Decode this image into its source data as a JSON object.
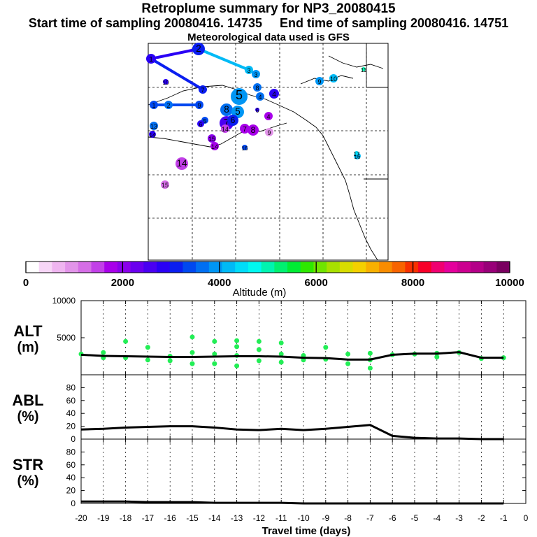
{
  "header": {
    "title": "Retroplume summary for NP3_20080415",
    "start_label": "Start time of sampling 20080416. 14735",
    "end_label": "End time of sampling 20080416. 14751",
    "met_label": "Meteorological data used is GFS"
  },
  "colorbar": {
    "label": "Altitude (m)",
    "ticks": [
      "0",
      "2000",
      "4000",
      "6000",
      "8000",
      "10000"
    ],
    "range": [
      0,
      10000
    ],
    "colors": [
      "#ffffff",
      "#f7d6f7",
      "#efb5f0",
      "#e294e9",
      "#d56ee6",
      "#c240e8",
      "#a800ea",
      "#8a00ec",
      "#6a00ef",
      "#4a00f2",
      "#2a00f5",
      "#0a1ef0",
      "#0048f0",
      "#006ff2",
      "#0096f4",
      "#00baf6",
      "#00dcf8",
      "#00f8f0",
      "#00f4b0",
      "#00f070",
      "#00ec34",
      "#2ee800",
      "#70e400",
      "#a8e000",
      "#d8dc00",
      "#f4d000",
      "#f8b000",
      "#f88c00",
      "#f86400",
      "#f83000",
      "#f80028",
      "#f00070",
      "#e4009c",
      "#cc0090",
      "#b40088",
      "#980078",
      "#7a0060"
    ]
  },
  "map": {
    "trajectory_labels": [
      "1",
      "2",
      "3",
      "4",
      "5",
      "6",
      "7",
      "8",
      "9",
      "10",
      "11",
      "13",
      "14",
      "15",
      "16",
      "17"
    ]
  },
  "chart_data": [
    {
      "type": "line",
      "panel": "ALT",
      "title": "ALT",
      "ylabel": "(m)",
      "ylim": [
        0,
        10000
      ],
      "yticks": [
        5000,
        10000
      ],
      "xlim": [
        -20,
        0
      ],
      "x": [
        -20,
        -19,
        -18,
        -17,
        -16,
        -15,
        -14,
        -13,
        -12,
        -11,
        -10,
        -9,
        -8,
        -7,
        -6,
        -5,
        -4,
        -3,
        -2,
        -1
      ],
      "values": [
        2700,
        2550,
        2500,
        2450,
        2400,
        2400,
        2450,
        2500,
        2500,
        2450,
        2300,
        2250,
        2050,
        2050,
        2700,
        2850,
        2850,
        3050,
        2300,
        2300
      ],
      "scatter": [
        {
          "x": -20,
          "y": 2800
        },
        {
          "x": -19,
          "y": 3000
        },
        {
          "x": -19,
          "y": 2300
        },
        {
          "x": -18,
          "y": 4500
        },
        {
          "x": -18,
          "y": 2300
        },
        {
          "x": -17,
          "y": 3700
        },
        {
          "x": -17,
          "y": 2000
        },
        {
          "x": -16,
          "y": 2500
        },
        {
          "x": -16,
          "y": 1900
        },
        {
          "x": -15,
          "y": 5100
        },
        {
          "x": -15,
          "y": 3000
        },
        {
          "x": -15,
          "y": 1500
        },
        {
          "x": -14,
          "y": 4500
        },
        {
          "x": -14,
          "y": 2800
        },
        {
          "x": -14,
          "y": 1500
        },
        {
          "x": -13,
          "y": 4600
        },
        {
          "x": -13,
          "y": 3800
        },
        {
          "x": -13,
          "y": 2600
        },
        {
          "x": -13,
          "y": 1200
        },
        {
          "x": -12,
          "y": 4500
        },
        {
          "x": -12,
          "y": 3400
        },
        {
          "x": -12,
          "y": 1900
        },
        {
          "x": -11,
          "y": 4300
        },
        {
          "x": -11,
          "y": 2800
        },
        {
          "x": -11,
          "y": 1700
        },
        {
          "x": -10,
          "y": 2600
        },
        {
          "x": -10,
          "y": 2000
        },
        {
          "x": -9,
          "y": 3700
        },
        {
          "x": -9,
          "y": 2100
        },
        {
          "x": -8,
          "y": 2800
        },
        {
          "x": -8,
          "y": 1500
        },
        {
          "x": -7,
          "y": 2900
        },
        {
          "x": -7,
          "y": 2000
        },
        {
          "x": -7,
          "y": 900
        },
        {
          "x": -6,
          "y": 2700
        },
        {
          "x": -5,
          "y": 2800
        },
        {
          "x": -4,
          "y": 2900
        },
        {
          "x": -4,
          "y": 2400
        },
        {
          "x": -3,
          "y": 3000
        },
        {
          "x": -2,
          "y": 2200
        },
        {
          "x": -1,
          "y": 2300
        }
      ]
    },
    {
      "type": "line",
      "panel": "ABL",
      "title": "ABL",
      "ylabel": "(%)",
      "ylim": [
        0,
        100
      ],
      "yticks": [
        0,
        20,
        40,
        60,
        80
      ],
      "xlim": [
        -20,
        0
      ],
      "x": [
        -20,
        -19,
        -18,
        -17,
        -16,
        -15,
        -14,
        -13,
        -12,
        -11,
        -10,
        -9,
        -8,
        -7,
        -6,
        -5,
        -4,
        -3,
        -2,
        -1
      ],
      "values": [
        15,
        16,
        18,
        19,
        20,
        20,
        18,
        15,
        14,
        16,
        14,
        16,
        19,
        22,
        5,
        2,
        1,
        1,
        0,
        0
      ]
    },
    {
      "type": "line",
      "panel": "STR",
      "title": "STR",
      "ylabel": "(%)",
      "ylim": [
        0,
        100
      ],
      "yticks": [
        0,
        20,
        40,
        60,
        80
      ],
      "xlim": [
        -20,
        0
      ],
      "xlabel": "Travel time (days)",
      "xticks": [
        "-20",
        "-19",
        "-18",
        "-17",
        "-16",
        "-15",
        "-14",
        "-13",
        "-12",
        "-11",
        "-10",
        "-9",
        "-8",
        "-7",
        "-6",
        "-5",
        "-4",
        "-3",
        "-2",
        "-1",
        "0"
      ],
      "x": [
        -20,
        -19,
        -18,
        -17,
        -16,
        -15,
        -14,
        -13,
        -12,
        -11,
        -10,
        -9,
        -8,
        -7,
        -6,
        -5,
        -4,
        -3,
        -2,
        -1
      ],
      "values": [
        3,
        3,
        3,
        2,
        2,
        2,
        1,
        1,
        1,
        1,
        0,
        0,
        0,
        0,
        0,
        0,
        0,
        0,
        0,
        0
      ]
    }
  ]
}
